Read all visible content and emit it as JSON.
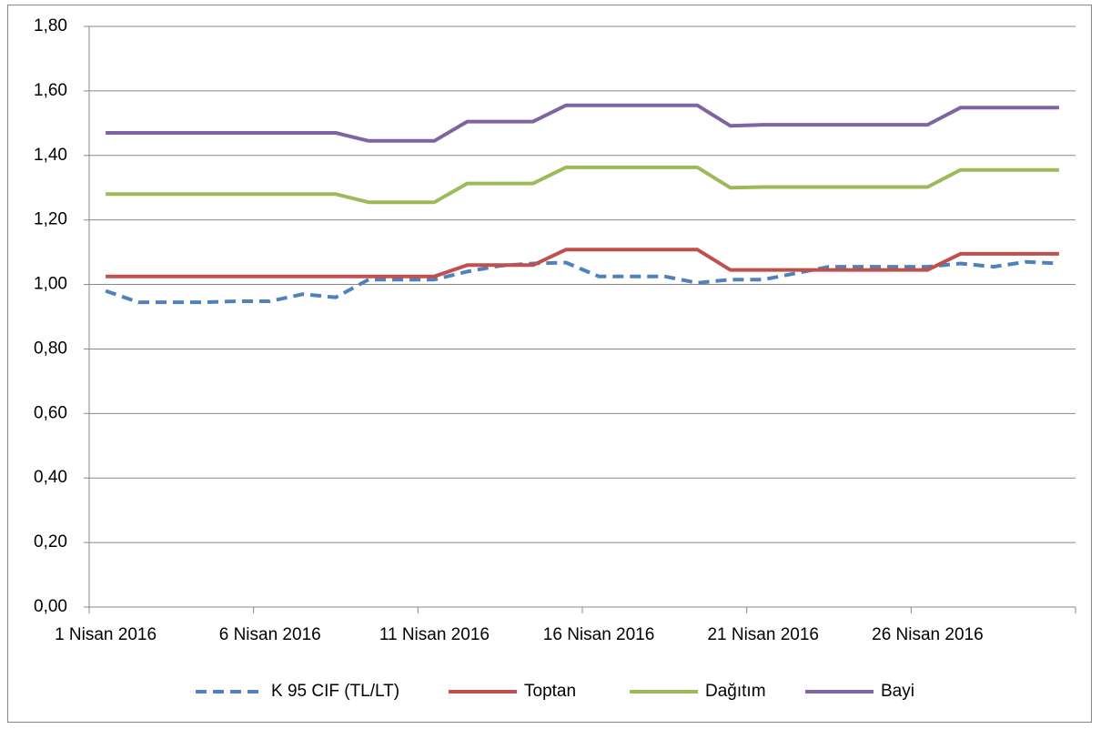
{
  "chart_data": {
    "type": "line",
    "categories": [
      "1 Nisan 2016",
      null,
      null,
      null,
      null,
      "6 Nisan 2016",
      null,
      null,
      null,
      null,
      "11 Nisan 2016",
      null,
      null,
      null,
      null,
      "16 Nisan 2016",
      null,
      null,
      null,
      null,
      "21 Nisan 2016",
      null,
      null,
      null,
      null,
      "26 Nisan 2016",
      null,
      null,
      null,
      null
    ],
    "series": [
      {
        "name": "K 95 CIF (TL/LT)",
        "color": "#4f81bd",
        "dashed": true,
        "values": [
          0.98,
          0.945,
          0.945,
          0.945,
          0.948,
          0.948,
          0.97,
          0.96,
          1.015,
          1.015,
          1.015,
          1.04,
          1.058,
          1.065,
          1.068,
          1.025,
          1.025,
          1.025,
          1.005,
          1.015,
          1.015,
          1.035,
          1.055,
          1.055,
          1.055,
          1.055,
          1.065,
          1.055,
          1.07,
          1.065
        ]
      },
      {
        "name": "Toptan",
        "color": "#c0504d",
        "values": [
          1.025,
          1.025,
          1.025,
          1.025,
          1.025,
          1.025,
          1.025,
          1.025,
          1.025,
          1.025,
          1.025,
          1.06,
          1.06,
          1.06,
          1.108,
          1.108,
          1.108,
          1.108,
          1.108,
          1.045,
          1.045,
          1.045,
          1.045,
          1.045,
          1.045,
          1.045,
          1.095,
          1.095,
          1.095,
          1.095
        ]
      },
      {
        "name": "Dağıtım",
        "color": "#9bbb59",
        "values": [
          1.28,
          1.28,
          1.28,
          1.28,
          1.28,
          1.28,
          1.28,
          1.28,
          1.255,
          1.255,
          1.255,
          1.313,
          1.313,
          1.313,
          1.363,
          1.363,
          1.363,
          1.363,
          1.363,
          1.3,
          1.302,
          1.302,
          1.302,
          1.302,
          1.302,
          1.302,
          1.355,
          1.355,
          1.355,
          1.355
        ]
      },
      {
        "name": "Bayi",
        "color": "#8064a2",
        "values": [
          1.47,
          1.47,
          1.47,
          1.47,
          1.47,
          1.47,
          1.47,
          1.47,
          1.445,
          1.445,
          1.445,
          1.505,
          1.505,
          1.505,
          1.555,
          1.555,
          1.555,
          1.555,
          1.555,
          1.492,
          1.495,
          1.495,
          1.495,
          1.495,
          1.495,
          1.495,
          1.548,
          1.548,
          1.548,
          1.548
        ]
      }
    ],
    "ylim": [
      0,
      1.8
    ],
    "yticks": [
      {
        "value": 0,
        "label": "0,00"
      },
      {
        "value": 0.2,
        "label": "0,20"
      },
      {
        "value": 0.4,
        "label": "0,40"
      },
      {
        "value": 0.6,
        "label": "0,60"
      },
      {
        "value": 0.8,
        "label": "0,80"
      },
      {
        "value": 1,
        "label": "1,00"
      },
      {
        "value": 1.2,
        "label": "1,20"
      },
      {
        "value": 1.4,
        "label": "1,40"
      },
      {
        "value": 1.6,
        "label": "1,60"
      },
      {
        "value": 1.8,
        "label": "1,80"
      }
    ],
    "grid": true,
    "legend": "bottom"
  }
}
